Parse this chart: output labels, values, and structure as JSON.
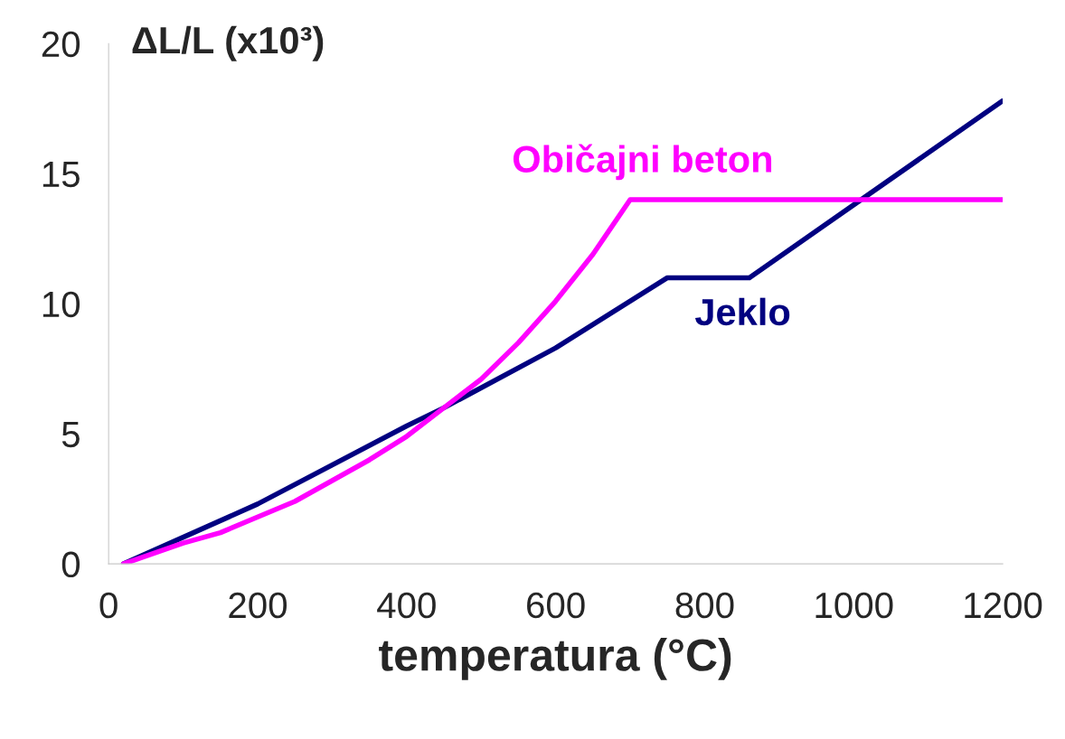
{
  "chart_data": {
    "type": "line",
    "xlabel": "temperatura (°C)",
    "ylabel": "ΔL/L (x10³)",
    "xlim": [
      0,
      1200
    ],
    "ylim": [
      0,
      20
    ],
    "xticks": [
      0,
      200,
      400,
      600,
      800,
      1000,
      1200
    ],
    "yticks": [
      0,
      5,
      10,
      15,
      20
    ],
    "grid": false,
    "legend": false,
    "marker": "none",
    "line_style": "solid",
    "series": [
      {
        "name": "Jeklo",
        "color": "#000080",
        "x": [
          20,
          200,
          400,
          450,
          600,
          750,
          860,
          1200
        ],
        "values": [
          0,
          2.3,
          5.3,
          6.0,
          8.3,
          11.0,
          11.0,
          17.8
        ]
      },
      {
        "name": "Običajni beton",
        "color": "#ff00ff",
        "x": [
          20,
          100,
          150,
          200,
          250,
          300,
          350,
          400,
          450,
          500,
          550,
          600,
          650,
          700,
          1200
        ],
        "values": [
          0,
          0.8,
          1.2,
          1.8,
          2.4,
          3.2,
          4.0,
          4.9,
          6.0,
          7.1,
          8.5,
          10.1,
          11.9,
          14.0,
          14.0
        ]
      }
    ]
  }
}
